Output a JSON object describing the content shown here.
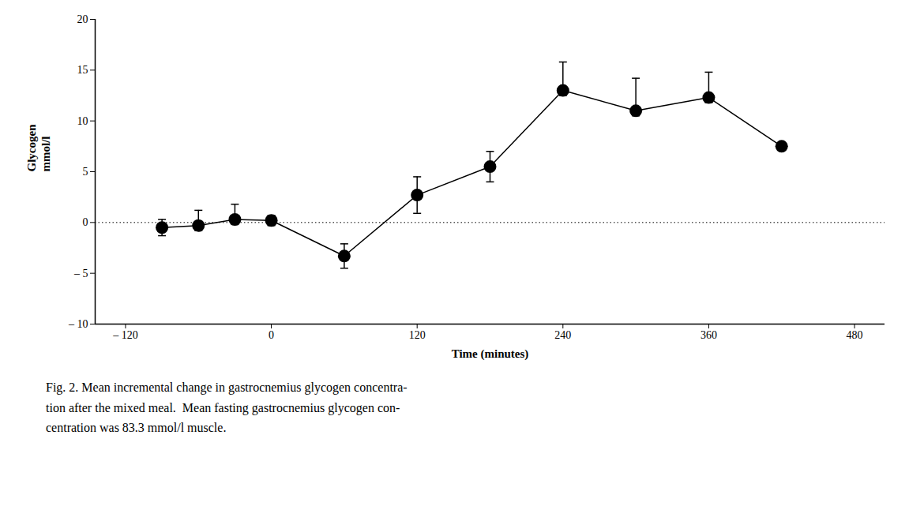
{
  "chart_data": {
    "type": "line",
    "x": [
      -90,
      -60,
      -30,
      0,
      60,
      120,
      180,
      240,
      300,
      360,
      420
    ],
    "values": [
      -0.5,
      -0.3,
      0.3,
      0.2,
      -3.3,
      2.7,
      5.5,
      13.0,
      11.0,
      12.3,
      7.5
    ],
    "yerr_upper": [
      0.8,
      1.5,
      1.5,
      0.5,
      1.2,
      1.8,
      1.5,
      2.8,
      3.2,
      2.5,
      0.0
    ],
    "yerr_lower": [
      0.8,
      0.5,
      0.5,
      0.5,
      1.2,
      1.8,
      1.5,
      0.5,
      0.5,
      0.5,
      0.0
    ],
    "color": "#000000",
    "marker": "circle",
    "xlim": [
      -145,
      505
    ],
    "ylim": [
      -10,
      20
    ],
    "xticks": [
      {
        "value": -120,
        "label": "– 120"
      },
      0,
      120,
      240,
      360,
      480
    ],
    "yticks": [
      {
        "value": -10,
        "label": "– 10"
      },
      {
        "value": -5,
        "label": "– 5"
      },
      0,
      5,
      10,
      15,
      20
    ],
    "xlabel": "Time (minutes)",
    "ylabel": "Glycogen\nmmol/l",
    "reference_lines": [
      {
        "y": 0,
        "line_style": "dotted",
        "color": "#000000"
      }
    ],
    "caption": "Fig. 2. Mean incremental change in gastrocnemius glycogen concentra-\ntion after the mixed meal.  Mean fasting gastrocnemius glycogen con-\ncentration was 83.3 mmol/l muscle."
  }
}
